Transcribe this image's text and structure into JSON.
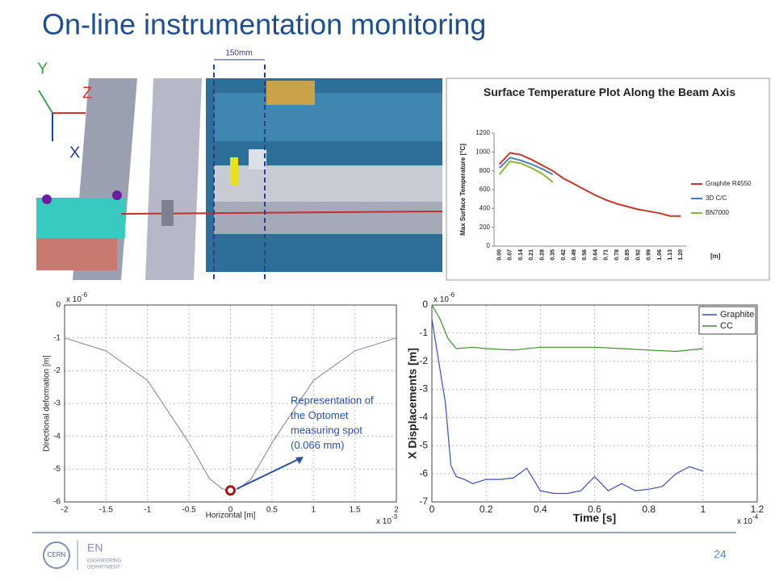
{
  "slide": {
    "title": "On-line instrumentation monitoring",
    "page_number": 24
  },
  "cad_figure": {
    "axes": [
      "Y",
      "Z",
      "X"
    ],
    "dimension": "150mm"
  },
  "logo": {
    "cern": "CERN",
    "en": "EN",
    "department": [
      "ENGINEERING",
      "DEPARTMENT"
    ]
  },
  "chart_data": [
    {
      "type": "line",
      "title": "Surface Temperature Plot Along the Beam Axis",
      "y_label": "Max Surface Temperature [°C]",
      "x_unit": "[m]",
      "categories": [
        "0.00",
        "0.07",
        "0.14",
        "0.21",
        "0.28",
        "0.35",
        "0.42",
        "0.49",
        "0.56",
        "0.64",
        "0.71",
        "0.78",
        "0.85",
        "0.92",
        "0.99",
        "1.06",
        "1.13",
        "1.20"
      ],
      "ylim": [
        0,
        1200
      ],
      "yticks": [
        0,
        200,
        400,
        600,
        800,
        1000,
        1200
      ],
      "grid": false,
      "legend": "right",
      "series": [
        {
          "name": "Graphite R4550",
          "color": "#c0392b",
          "values": [
            870,
            990,
            970,
            920,
            860,
            800,
            720,
            660,
            600,
            540,
            490,
            450,
            420,
            390,
            370,
            350,
            320,
            320
          ]
        },
        {
          "name": "3D C/C",
          "color": "#4a7ebb",
          "values": [
            830,
            940,
            910,
            870,
            820,
            760,
            null,
            null,
            null,
            null,
            null,
            null,
            null,
            null,
            null,
            null,
            null,
            null
          ]
        },
        {
          "name": "BN7000",
          "color": "#8db33a",
          "values": [
            760,
            900,
            880,
            830,
            770,
            680,
            null,
            null,
            null,
            null,
            null,
            null,
            null,
            null,
            null,
            null,
            null,
            null
          ]
        }
      ]
    },
    {
      "type": "line",
      "x_label": "Horizontal [m]",
      "y_label": "Directional deformation [m]",
      "x_scale": [
        "x 10",
        "-3"
      ],
      "y_scale": [
        "x 10",
        "-6"
      ],
      "xlim": [
        -2,
        2
      ],
      "xticks": [
        -2,
        -1.5,
        -1,
        -0.5,
        0,
        0.5,
        1,
        1.5,
        2
      ],
      "ylim": [
        -6,
        0
      ],
      "yticks": [
        -6,
        -5,
        -4,
        -3,
        -2,
        -1,
        0
      ],
      "grid": true,
      "series": [
        {
          "color": "#7a7f9a",
          "x": [
            -2,
            -1.5,
            -1,
            -0.5,
            -0.25,
            -0.1,
            0,
            0.1,
            0.25,
            0.5,
            1,
            1.5,
            2
          ],
          "values": [
            -1,
            -1.4,
            -2.3,
            -4.2,
            -5.3,
            -5.6,
            -5.65,
            -5.6,
            -5.3,
            -4.2,
            -2.3,
            -1.4,
            -1
          ]
        }
      ],
      "annotation": {
        "lines": [
          "Representation of",
          "the Optomet",
          "measuring spot",
          "(0.066 mm)"
        ],
        "x": 0,
        "y": -5.65
      }
    },
    {
      "type": "line",
      "x_label": "Time [s]",
      "y_label": "X Displacements [m]",
      "x_scale": [
        "x 10",
        "-4"
      ],
      "y_scale": [
        "x 10",
        "-6"
      ],
      "xlim": [
        0,
        1.2
      ],
      "xticks": [
        0,
        0.2,
        0.4,
        0.6,
        0.8,
        1,
        1.2
      ],
      "ylim": [
        -7,
        0
      ],
      "yticks": [
        -7,
        -6,
        -5,
        -4,
        -3,
        -2,
        -1,
        0
      ],
      "grid": true,
      "legend": "top-right",
      "series": [
        {
          "name": "Graphite",
          "color": "#3b4fb8",
          "x": [
            0,
            0.05,
            0.07,
            0.09,
            0.12,
            0.15,
            0.2,
            0.25,
            0.3,
            0.35,
            0.4,
            0.45,
            0.5,
            0.55,
            0.6,
            0.65,
            0.7,
            0.75,
            0.8,
            0.85,
            0.9,
            0.95,
            1.0
          ],
          "values": [
            -0.5,
            -3.5,
            -5.7,
            -6.1,
            -6.2,
            -6.35,
            -6.2,
            -6.2,
            -6.15,
            -5.8,
            -6.6,
            -6.7,
            -6.7,
            -6.6,
            -6.1,
            -6.6,
            -6.35,
            -6.6,
            -6.55,
            -6.45,
            -6.0,
            -5.75,
            -5.9
          ]
        },
        {
          "name": "CC",
          "color": "#3f8f2f",
          "x": [
            0,
            0.03,
            0.06,
            0.09,
            0.15,
            0.2,
            0.3,
            0.4,
            0.5,
            0.6,
            0.7,
            0.8,
            0.9,
            1.0
          ],
          "values": [
            0,
            -0.5,
            -1.2,
            -1.55,
            -1.5,
            -1.55,
            -1.6,
            -1.5,
            -1.5,
            -1.5,
            -1.55,
            -1.6,
            -1.65,
            -1.55
          ]
        }
      ]
    }
  ]
}
